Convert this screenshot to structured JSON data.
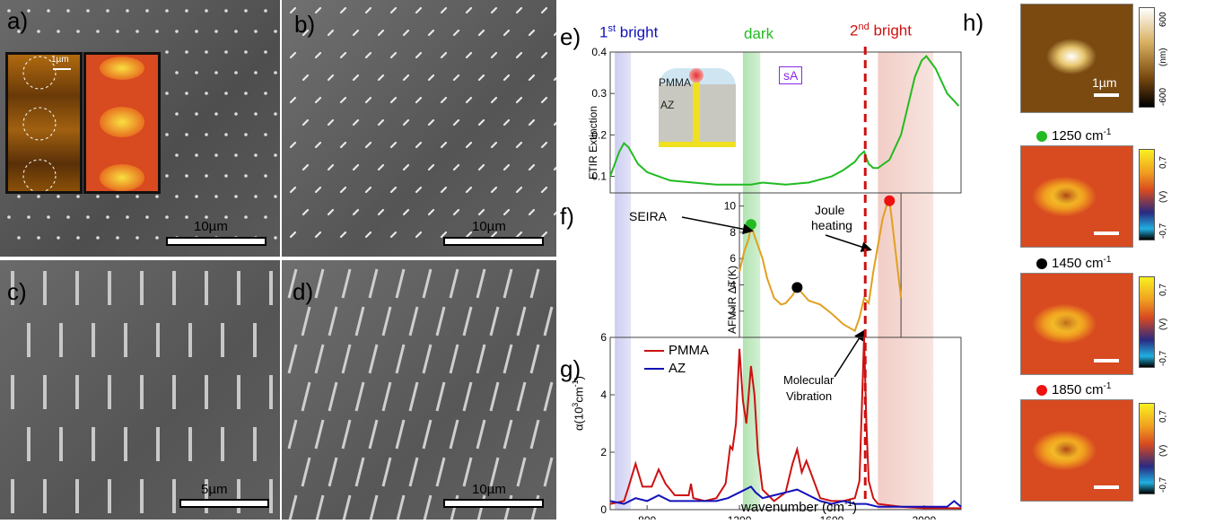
{
  "panels": {
    "a": {
      "label": "a)",
      "scalebar": "10µm",
      "inset_scalebar": "1µm"
    },
    "b": {
      "label": "b)",
      "scalebar": "10µm"
    },
    "c": {
      "label": "c)",
      "scalebar": "5µm"
    },
    "d": {
      "label": "d)",
      "scalebar": "10µm"
    },
    "e": {
      "label": "e)"
    },
    "f": {
      "label": "f)"
    },
    "g": {
      "label": "g)"
    },
    "h": {
      "label": "h)"
    }
  },
  "bands": {
    "bright1": "1",
    "bright1_sup": "st",
    "bright1_text": "bright",
    "dark": "dark",
    "bright2": "2",
    "bright2_sup": "nd",
    "bright2_text": "bright"
  },
  "inset_e": {
    "pmma": "PMMA",
    "az": "AZ",
    "sa": "sA"
  },
  "annotations": {
    "seira": "SEIRA",
    "joule1": "Joule",
    "joule2": "heating",
    "molecular1": "Molecular",
    "molecular2": "Vibration"
  },
  "colors": {
    "green": "#22bb22",
    "red": "#cc1111",
    "blue": "#1111bb",
    "orange": "#e0a020",
    "band_blue": "#c8c8f0",
    "band_green": "#a8e0a8",
    "band_red": "#f0c8c0"
  },
  "chart_data": [
    {
      "type": "line",
      "id": "e",
      "ylabel": "FTIR Extinction",
      "ylim": [
        0.06,
        0.4
      ],
      "yticks": [
        0.1,
        0.2,
        0.3,
        0.4
      ],
      "ytick_labels": [
        "0.1",
        "0.2",
        "0.3",
        "0.4"
      ],
      "series": [
        {
          "color": "#22bb22",
          "x": [
            640,
            660,
            680,
            700,
            720,
            740,
            760,
            800,
            850,
            900,
            1000,
            1100,
            1200,
            1250,
            1300,
            1400,
            1500,
            1600,
            1650,
            1700,
            1720,
            1740,
            1760,
            1780,
            1800,
            1850,
            1900,
            1930,
            1960,
            1990,
            2010,
            2050,
            2100,
            2150
          ],
          "y": [
            0.1,
            0.13,
            0.16,
            0.18,
            0.17,
            0.15,
            0.13,
            0.11,
            0.1,
            0.09,
            0.085,
            0.08,
            0.08,
            0.08,
            0.085,
            0.08,
            0.085,
            0.1,
            0.115,
            0.135,
            0.15,
            0.16,
            0.13,
            0.12,
            0.12,
            0.14,
            0.2,
            0.27,
            0.34,
            0.38,
            0.39,
            0.36,
            0.3,
            0.27
          ]
        }
      ]
    },
    {
      "type": "line",
      "id": "f",
      "ylabel": "AFM-IR ΔT(K)",
      "ylim": [
        0,
        11
      ],
      "yticks": [
        2,
        4,
        6,
        8,
        10
      ],
      "ytick_labels": [
        "2",
        "4",
        "6",
        "8",
        "10"
      ],
      "series": [
        {
          "color": "#e0a020",
          "x": [
            1200,
            1220,
            1240,
            1250,
            1260,
            1280,
            1300,
            1320,
            1350,
            1380,
            1400,
            1430,
            1450,
            1470,
            1500,
            1550,
            1600,
            1650,
            1700,
            1720,
            1740,
            1760,
            1780,
            1800,
            1820,
            1840,
            1850,
            1860,
            1880,
            1900
          ],
          "y": [
            5,
            6.5,
            7.5,
            8.6,
            8,
            7,
            6,
            4.5,
            3,
            2.5,
            2.6,
            3.2,
            3.8,
            3.4,
            2.8,
            2.5,
            1.8,
            1,
            0.5,
            1.5,
            3,
            2.6,
            5,
            7,
            9,
            10.2,
            10.4,
            9,
            6,
            3
          ]
        }
      ],
      "markers": [
        {
          "x": 1250,
          "y": 8.6,
          "color": "#22bb22"
        },
        {
          "x": 1450,
          "y": 3.8,
          "color": "#000000"
        },
        {
          "x": 1850,
          "y": 10.4,
          "color": "#ee1111"
        }
      ]
    },
    {
      "type": "line",
      "id": "g",
      "xlabel": "wavenumber (cm",
      "xlabel_sup": "-1",
      "xlabel_end": ")",
      "ylabel": "α(10",
      "ylabel_sup": "3",
      "ylabel_end": "cm",
      "ylabel_sup2": "-1",
      "ylabel_close": ")",
      "xlim": [
        640,
        2160
      ],
      "ylim": [
        0,
        6
      ],
      "xticks": [
        800,
        1200,
        1600,
        2000
      ],
      "xtick_labels": [
        "800",
        "1200",
        "1600",
        "2000"
      ],
      "yticks": [
        0,
        2,
        4,
        6
      ],
      "ytick_labels": [
        "0",
        "2",
        "4",
        "6"
      ],
      "series": [
        {
          "name": "PMMA",
          "color": "#cc1111",
          "x": [
            640,
            700,
            720,
            750,
            780,
            820,
            850,
            880,
            920,
            980,
            990,
            1000,
            1050,
            1100,
            1140,
            1160,
            1170,
            1185,
            1200,
            1215,
            1230,
            1250,
            1265,
            1280,
            1300,
            1350,
            1400,
            1430,
            1450,
            1470,
            1490,
            1550,
            1600,
            1650,
            1700,
            1720,
            1730,
            1740,
            1750,
            1760,
            1780,
            1800,
            1900,
            2000,
            2100,
            2160
          ],
          "y": [
            0.2,
            0.3,
            0.8,
            1.6,
            0.8,
            0.8,
            1.4,
            0.9,
            0.5,
            0.5,
            0.9,
            0.4,
            0.3,
            0.4,
            0.9,
            2.2,
            2.1,
            3.0,
            5.6,
            3.8,
            3.0,
            5.0,
            4.0,
            2.0,
            0.7,
            0.3,
            0.6,
            1.6,
            2.1,
            1.3,
            1.7,
            0.4,
            0.3,
            0.3,
            0.4,
            1.0,
            3.5,
            6.0,
            3.0,
            1.0,
            0.4,
            0.2,
            0.1,
            0.05,
            0.05,
            0.05
          ]
        },
        {
          "name": "AZ",
          "color": "#1111bb",
          "x": [
            640,
            700,
            750,
            800,
            850,
            900,
            1000,
            1100,
            1150,
            1200,
            1250,
            1270,
            1300,
            1350,
            1400,
            1450,
            1500,
            1550,
            1600,
            1650,
            1700,
            1750,
            1800,
            1900,
            2000,
            2100,
            2130,
            2160
          ],
          "y": [
            0.3,
            0.2,
            0.4,
            0.3,
            0.5,
            0.3,
            0.3,
            0.3,
            0.4,
            0.6,
            0.8,
            0.6,
            0.4,
            0.5,
            0.6,
            0.7,
            0.5,
            0.3,
            0.2,
            0.3,
            0.2,
            0.2,
            0.1,
            0.1,
            0.1,
            0.1,
            0.3,
            0.1
          ]
        }
      ]
    },
    {
      "type": "heatmap",
      "id": "h",
      "maps": [
        {
          "title": "",
          "colorbar_ticks": [
            "600",
            "-600"
          ],
          "colorbar_label": "(nm)",
          "scalebar": "1µm"
        },
        {
          "title": "1250 cm",
          "title_sup": "-1",
          "marker_color": "#22bb22",
          "colorbar_ticks": [
            "0,7",
            "-0,7"
          ],
          "colorbar_label": "(V)"
        },
        {
          "title": "1450 cm",
          "title_sup": "-1",
          "marker_color": "#000000",
          "colorbar_ticks": [
            "0,7",
            "-0,7"
          ],
          "colorbar_label": "(V)"
        },
        {
          "title": "1850 cm",
          "title_sup": "-1",
          "marker_color": "#ee1111",
          "colorbar_ticks": [
            "0,7",
            "-0,7"
          ],
          "colorbar_label": "(V)"
        }
      ]
    }
  ]
}
